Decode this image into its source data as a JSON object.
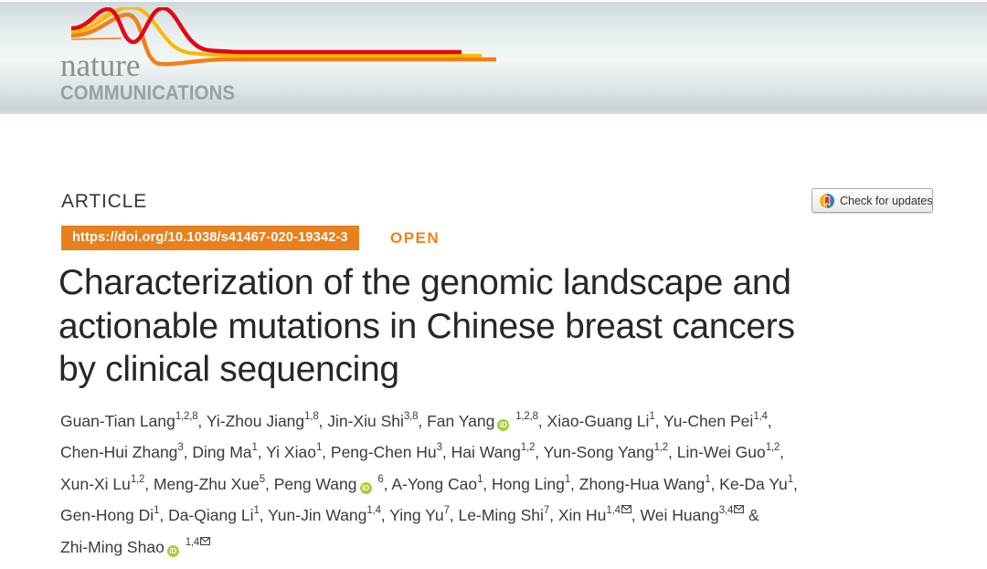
{
  "journal": {
    "name_top": "nature",
    "name_bottom": "COMMUNICATIONS"
  },
  "article": {
    "kicker": "ARTICLE",
    "doi": "https://doi.org/10.1038/s41467-020-19342-3",
    "open_label": "OPEN",
    "check_updates_label": "Check for updates",
    "title_lines": [
      "Characterization of the genomic landscape and",
      "actionable mutations in Chinese breast cancers",
      "by clinical sequencing"
    ]
  },
  "authors": {
    "lines": [
      [
        {
          "name": "Guan-Tian Lang",
          "sup": "1,2,8",
          "tail": ", "
        },
        {
          "name": "Yi-Zhou Jiang",
          "sup": "1,8",
          "tail": ", "
        },
        {
          "name": "Jin-Xiu Shi",
          "sup": "3,8",
          "tail": ", "
        },
        {
          "name": "Fan Yang",
          "orcid": true,
          "sup": "1,2,8",
          "tail": ", "
        },
        {
          "name": "Xiao-Guang Li",
          "sup": "1",
          "tail": ", "
        },
        {
          "name": "Yu-Chen Pei",
          "sup": "1,4",
          "tail": ","
        }
      ],
      [
        {
          "name": "Chen-Hui Zhang",
          "sup": "3",
          "tail": ", "
        },
        {
          "name": "Ding Ma",
          "sup": "1",
          "tail": ", "
        },
        {
          "name": "Yi Xiao",
          "sup": "1",
          "tail": ", "
        },
        {
          "name": "Peng-Chen Hu",
          "sup": "3",
          "tail": ", "
        },
        {
          "name": "Hai Wang",
          "sup": "1,2",
          "tail": ", "
        },
        {
          "name": "Yun-Song Yang",
          "sup": "1,2",
          "tail": ", "
        },
        {
          "name": "Lin-Wei Guo",
          "sup": "1,2",
          "tail": ","
        }
      ],
      [
        {
          "name": "Xun-Xi Lu",
          "sup": "1,2",
          "tail": ", "
        },
        {
          "name": "Meng-Zhu Xue",
          "sup": "5",
          "tail": ", "
        },
        {
          "name": "Peng Wang",
          "orcid": true,
          "sup": "6",
          "tail": ", "
        },
        {
          "name": "A-Yong Cao",
          "sup": "1",
          "tail": ", "
        },
        {
          "name": "Hong Ling",
          "sup": "1",
          "tail": ", "
        },
        {
          "name": "Zhong-Hua Wang",
          "sup": "1",
          "tail": ", "
        },
        {
          "name": "Ke-Da Yu",
          "sup": "1",
          "tail": ","
        }
      ],
      [
        {
          "name": "Gen-Hong Di",
          "sup": "1",
          "tail": ", "
        },
        {
          "name": "Da-Qiang Li",
          "sup": "1",
          "tail": ", "
        },
        {
          "name": "Yun-Jin Wang",
          "sup": "1,4",
          "tail": ", "
        },
        {
          "name": "Ying Yu",
          "sup": "7",
          "tail": ", "
        },
        {
          "name": "Le-Ming Shi",
          "sup": "7",
          "tail": ", "
        },
        {
          "name": "Xin Hu",
          "sup": "1,4",
          "email": true,
          "tail": ", "
        },
        {
          "name": "Wei Huang",
          "sup": "3,4",
          "email": true,
          "tail": " &"
        }
      ],
      [
        {
          "name": "Zhi-Ming Shao",
          "orcid": true,
          "sup": "1,4",
          "email": true,
          "tail": ""
        }
      ]
    ]
  },
  "icons": {
    "orcid": "iD",
    "crossmark": "crossmark-bookmark-circle",
    "email": "envelope"
  },
  "colors": {
    "brand_orange": "#e8801d",
    "open_orange": "#ee8316",
    "ribbon_red": "#e30613",
    "ribbon_orange": "#f08019",
    "ribbon_yellow": "#fbba00",
    "orcid_green": "#a6ce39",
    "crossmark_yellow": "#f0b310",
    "crossmark_blue": "#2e7dbc",
    "crossmark_red": "#d8382e",
    "masthead_gray": "#99a0a0"
  }
}
